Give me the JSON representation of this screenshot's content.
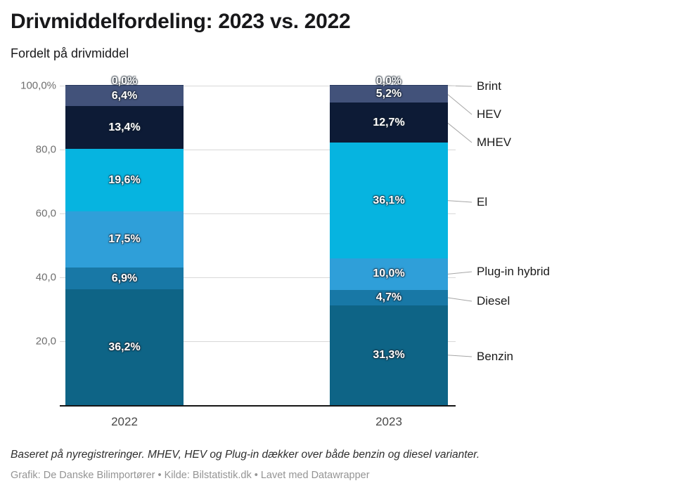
{
  "header": {
    "title": "Drivmiddelfordeling: 2023 vs. 2022",
    "subtitle": "Fordelt på drivmiddel"
  },
  "chart_data": {
    "type": "bar",
    "stacked": true,
    "unit": "%",
    "title": "Drivmiddelfordeling: 2023 vs. 2022",
    "subtitle": "Fordelt på drivmiddel",
    "categories": [
      "2022",
      "2023"
    ],
    "series": [
      {
        "name": "Benzin",
        "color": "#0e6486",
        "values": [
          36.2,
          31.3
        ],
        "labels": [
          "36,2%",
          "31,3%"
        ]
      },
      {
        "name": "Diesel",
        "color": "#1878a6",
        "values": [
          6.9,
          4.7
        ],
        "labels": [
          "6,9%",
          "4,7%"
        ]
      },
      {
        "name": "Plug-in hybrid",
        "color": "#2f9fd9",
        "values": [
          17.5,
          10.0
        ],
        "labels": [
          "17,5%",
          "10,0%"
        ]
      },
      {
        "name": "El",
        "color": "#06b4e0",
        "values": [
          19.6,
          36.1
        ],
        "labels": [
          "19,6%",
          "36,1%"
        ]
      },
      {
        "name": "MHEV",
        "color": "#0d1b36",
        "values": [
          13.4,
          12.7
        ],
        "labels": [
          "13,4%",
          "12,7%"
        ]
      },
      {
        "name": "HEV",
        "color": "#42527a",
        "values": [
          6.4,
          5.2
        ],
        "labels": [
          "6,4%",
          "5,2%"
        ]
      },
      {
        "name": "Brint",
        "color": "#24365c",
        "values": [
          0.0,
          0.0
        ],
        "labels": [
          "0,0%",
          "0,0%"
        ]
      }
    ],
    "y_axis": {
      "range": [
        0,
        100
      ],
      "tick_values": [
        100,
        80,
        60,
        40,
        20
      ],
      "tick_labels": [
        "100,0%",
        "80,0",
        "60,0",
        "40,0",
        "20,0"
      ],
      "grid": true
    },
    "legend_position": "right",
    "legend_order": [
      "Brint",
      "HEV",
      "MHEV",
      "El",
      "Plug-in hybrid",
      "Diesel",
      "Benzin"
    ]
  },
  "footer": {
    "note": "Baseret på nyregistreringer. MHEV, HEV og Plug-in dækker over både benzin og diesel varianter.",
    "byline": "Grafik: De Danske Bilimportører • Kilde: Bilstatistik.dk • Lavet med Datawrapper"
  }
}
